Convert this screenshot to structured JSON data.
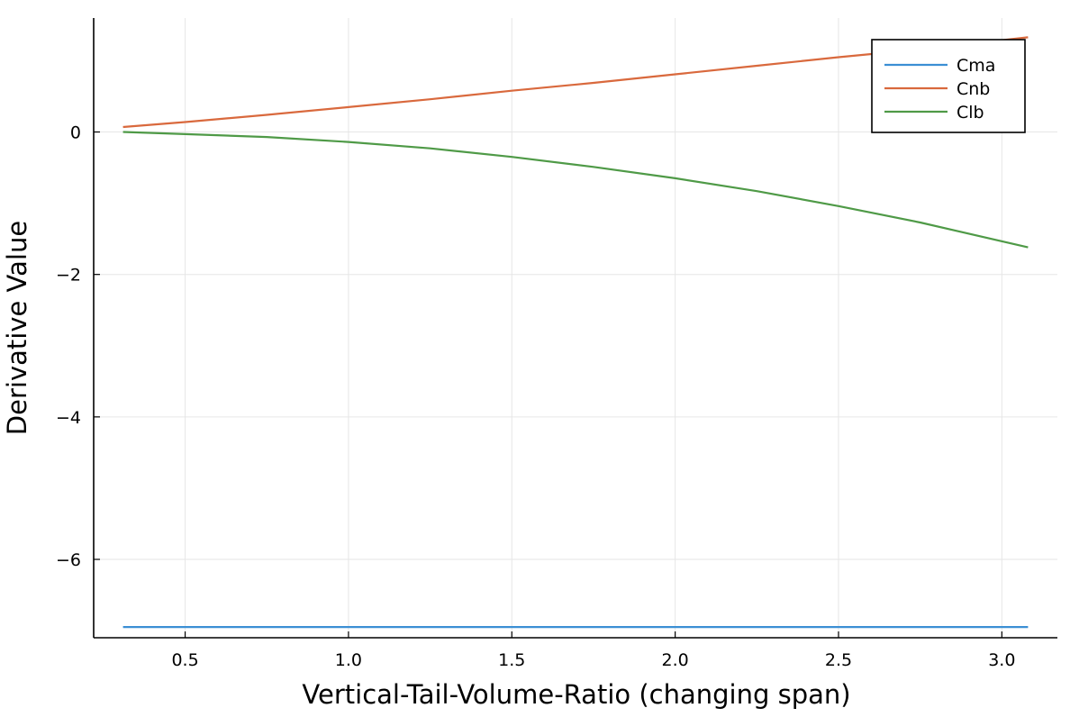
{
  "chart_data": {
    "type": "line",
    "title": "",
    "xlabel": "Vertical-Tail-Volume-Ratio (changing span)",
    "ylabel": "Derivative Value",
    "xlim": [
      0.22,
      3.17
    ],
    "ylim": [
      -7.1,
      1.6
    ],
    "xticks": [
      0.5,
      1.0,
      1.5,
      2.0,
      2.5,
      3.0
    ],
    "xtick_labels": [
      "0.5",
      "1.0",
      "1.5",
      "2.0",
      "2.5",
      "3.0"
    ],
    "yticks": [
      0,
      -2,
      -4,
      -6
    ],
    "ytick_labels": [
      "0",
      "−2",
      "−4",
      "−6"
    ],
    "grid": true,
    "legend_position": "top-right",
    "series": [
      {
        "name": "Cma",
        "color": "#3b8fd4",
        "x": [
          0.31,
          0.7,
          1.0,
          1.5,
          2.0,
          2.5,
          3.08
        ],
        "y": [
          -6.95,
          -6.95,
          -6.95,
          -6.95,
          -6.95,
          -6.95,
          -6.95
        ]
      },
      {
        "name": "Cnb",
        "color": "#d9693d",
        "x": [
          0.31,
          0.5,
          0.75,
          1.0,
          1.25,
          1.5,
          1.75,
          2.0,
          2.25,
          2.5,
          2.75,
          3.08
        ],
        "y": [
          0.07,
          0.14,
          0.24,
          0.35,
          0.46,
          0.58,
          0.69,
          0.81,
          0.93,
          1.05,
          1.16,
          1.33
        ]
      },
      {
        "name": "Clb",
        "color": "#4f9a47",
        "x": [
          0.31,
          0.5,
          0.75,
          1.0,
          1.25,
          1.5,
          1.75,
          2.0,
          2.25,
          2.5,
          2.75,
          3.08
        ],
        "y": [
          0.0,
          -0.03,
          -0.07,
          -0.14,
          -0.23,
          -0.35,
          -0.49,
          -0.65,
          -0.83,
          -1.04,
          -1.27,
          -1.62
        ]
      }
    ]
  }
}
